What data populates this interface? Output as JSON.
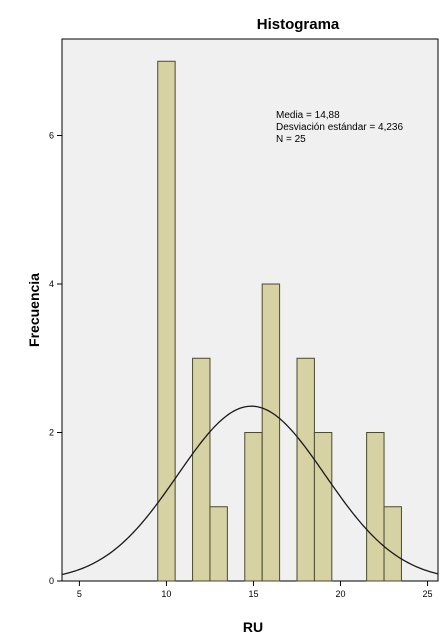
{
  "chart_data": {
    "type": "bar",
    "title": "Histograma",
    "xlabel": "RU",
    "ylabel": "Frecuencia",
    "xlim": [
      4,
      25.6
    ],
    "ylim": [
      0,
      7.3
    ],
    "x_ticks": [
      5,
      10,
      15,
      20,
      25
    ],
    "y_ticks": [
      0,
      2,
      4,
      6
    ],
    "bin_width": 1,
    "bins": [
      {
        "x": 10,
        "count": 7
      },
      {
        "x": 12,
        "count": 3
      },
      {
        "x": 13,
        "count": 1
      },
      {
        "x": 15,
        "count": 2
      },
      {
        "x": 16,
        "count": 4
      },
      {
        "x": 18,
        "count": 3
      },
      {
        "x": 19,
        "count": 2
      },
      {
        "x": 22,
        "count": 2
      },
      {
        "x": 23,
        "count": 1
      }
    ],
    "normal_curve": {
      "mean": 14.88,
      "sd": 4.236,
      "n": 25
    },
    "stats_lines": [
      "Media = 14,88",
      "Desviación estándar = 4,236",
      "N = 25"
    ],
    "colors": {
      "bar_fill": "#d6d2a4",
      "bar_stroke": "#4a4a2e",
      "plot_bg": "#f0f0f0",
      "curve": "#1a1a1a"
    },
    "grid": false
  }
}
